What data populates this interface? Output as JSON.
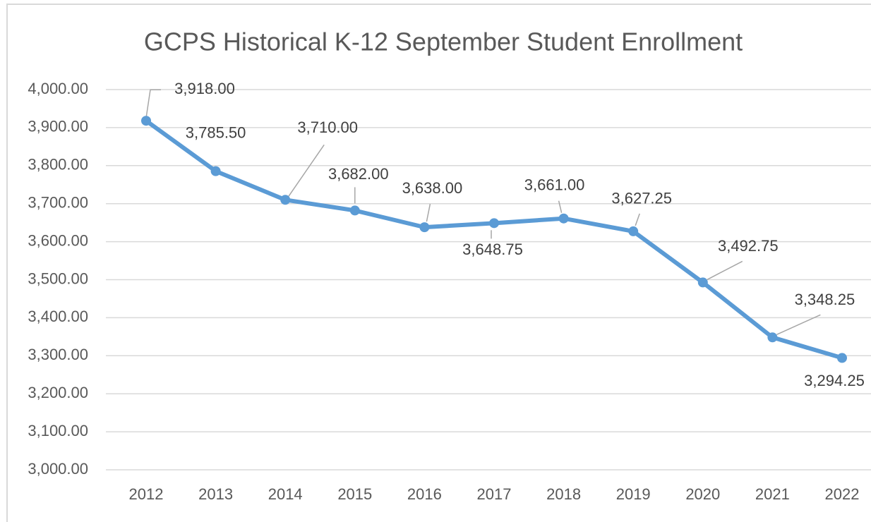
{
  "chart_data": {
    "type": "line",
    "title": "GCPS Historical K-12 September Student Enrollment",
    "categories": [
      "2012",
      "2013",
      "2014",
      "2015",
      "2016",
      "2017",
      "2018",
      "2019",
      "2020",
      "2021",
      "2022"
    ],
    "series": [
      {
        "color": "#5b9bd5",
        "values": [
          3918,
          3785.5,
          3710,
          3682,
          3638,
          3648.75,
          3661,
          3627.25,
          3492.75,
          3348.25,
          3294.25
        ],
        "value_labels": [
          "3,918.00",
          "3,785.50",
          "3,710.00",
          "3,682.00",
          "3,638.00",
          "3,648.75",
          "3,661.00",
          "3,627.25",
          "3,492.75",
          "3,348.25",
          "3,294.25"
        ]
      }
    ],
    "ylim": [
      3000,
      4000
    ],
    "yticks": [
      {
        "value": 3000,
        "label": "3,000.00"
      },
      {
        "value": 3100,
        "label": "3,100.00"
      },
      {
        "value": 3200,
        "label": "3,200.00"
      },
      {
        "value": 3300,
        "label": "3,300.00"
      },
      {
        "value": 3400,
        "label": "3,400.00"
      },
      {
        "value": 3500,
        "label": "3,500.00"
      },
      {
        "value": 3600,
        "label": "3,600.00"
      },
      {
        "value": 3700,
        "label": "3,700.00"
      },
      {
        "value": 3800,
        "label": "3,800.00"
      },
      {
        "value": 3900,
        "label": "3,900.00"
      },
      {
        "value": 4000,
        "label": "4,000.00"
      }
    ],
    "grid": true
  }
}
